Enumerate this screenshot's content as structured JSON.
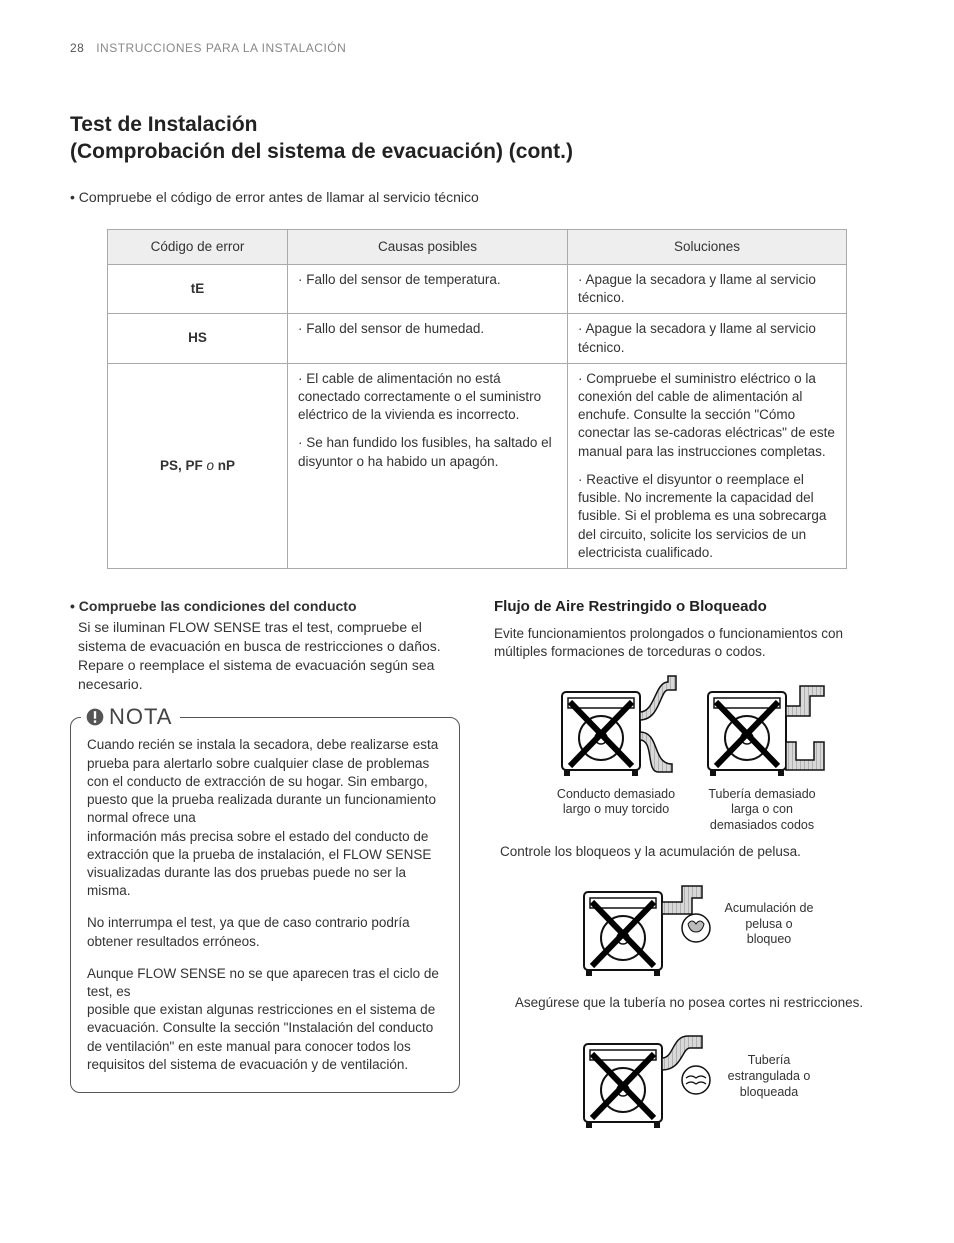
{
  "header": {
    "page_number": "28",
    "section": "INSTRUCCIONES PARA LA INSTALACIÓN"
  },
  "title_line1": "Test de Instalación",
  "title_line2": "(Comprobación del sistema de evacuación) (cont.)",
  "intro_bullet": "• Compruebe el código de error antes de llamar al servicio técnico",
  "table": {
    "headers": {
      "code": "Código de error",
      "cause": "Causas posibles",
      "solution": "Soluciones"
    },
    "rows": [
      {
        "code": "tE",
        "causes": [
          "Fallo del sensor de temperatura."
        ],
        "solutions": [
          "Apague la secadora y llame al servicio técnico."
        ]
      },
      {
        "code": "HS",
        "causes": [
          "Fallo del sensor de humedad."
        ],
        "solutions": [
          "Apague la secadora y llame al servicio técnico."
        ]
      },
      {
        "code_html": "PS, PF <span class=\"italic-o\">o</span> nP",
        "causes": [
          "El cable de alimentación no está conectado correctamente o el suministro eléctrico de la vivienda es incorrecto.",
          "Se han fundido los fusibles, ha saltado el disyuntor o ha habido un apagón."
        ],
        "solutions": [
          "Compruebe el suministro eléctrico o la conexión del cable de alimentación al enchufe. Consulte la sección \"Cómo conectar las se-cadoras eléctricas\" de este manual para las instrucciones completas.",
          "Reactive el disyuntor o reemplace el fusible. No incremente la capacidad del fusible. Si el problema es una sobrecarga del circuito, solicite los servicios de un electricista cualificado."
        ]
      }
    ]
  },
  "left": {
    "check_title": "• Compruebe las condiciones del conducto",
    "check_body": "Si se iluminan FLOW SENSE tras el test, compruebe el sistema de evacuación en busca de restricciones o daños. Repare o reemplace el sistema de evacuación según sea necesario.",
    "nota_label": "NOTA",
    "nota_p1": "Cuando recién se instala la secadora, debe realizarse esta prueba para alertarlo sobre cualquier clase de problemas con el conducto de extracción de su hogar. Sin embargo, puesto que la prueba realizada durante un funcionamiento normal ofrece una",
    "nota_p1b": "información más precisa sobre el estado del conducto de extracción que la prueba de instalación, el FLOW SENSE  visualizadas durante las dos pruebas puede no ser la misma.",
    "nota_p2": "No interrumpa el test, ya que de caso contrario podría obtener resultados erróneos.",
    "nota_p3": "Aunque FLOW SENSE no se que aparecen tras el ciclo de test, es",
    "nota_p3b": "posible que existan algunas restricciones en el sistema de evacuación. Consulte la sección \"Instalación del conducto de ventilación\" en este manual para conocer todos los requisitos del sistema de evacuación y de ventilación."
  },
  "right": {
    "title": "Flujo de Aire Restringido o Bloqueado",
    "intro": "Evite funcionamientos prolongados o funcionamientos con múltiples formaciones de torceduras o codos.",
    "fig1_cap": "Conducto demasiado largo o muy torcido",
    "fig2_cap": "Tubería demasiado larga o con demasiados codos",
    "mid1": "Controle los bloqueos y la acumulación de pelusa.",
    "fig3_cap": "Acumulación de pelusa o bloqueo",
    "mid2": "Asegúrese que la tubería no posea cortes ni restricciones.",
    "fig4_cap": "Tubería estrangulada o bloqueada"
  },
  "diagram": {
    "stroke": "#111111",
    "x_stroke": "#000000",
    "x_width": 6,
    "duct_fill": "#cfcfcf"
  }
}
